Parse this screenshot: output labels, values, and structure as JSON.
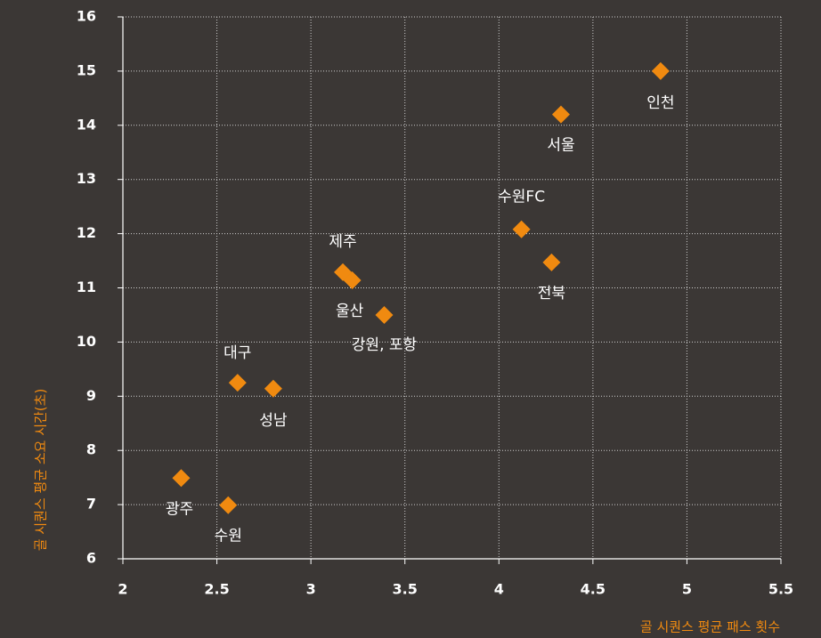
{
  "chart_data": {
    "type": "scatter",
    "x_label": "골 시퀀스 평균 패스 횟수",
    "y_label": "골 시퀀스 평균 소요 시간(초)",
    "labels": [
      "인천",
      "서울",
      "수원FC",
      "전북",
      "제주",
      "울산",
      "강원, 포항",
      "대구",
      "성남",
      "광주",
      "수원"
    ],
    "x": [
      4.86,
      4.33,
      4.12,
      4.28,
      3.17,
      3.22,
      3.39,
      2.61,
      2.8,
      2.31,
      2.56
    ],
    "values": [
      15.0,
      14.2,
      12.08,
      11.47,
      11.29,
      11.14,
      10.5,
      9.25,
      9.14,
      7.49,
      6.99
    ],
    "color": "#f08a10",
    "xlim": [
      2,
      5.5
    ],
    "xticks": [
      2,
      2.5,
      3,
      3.5,
      4,
      4.5,
      5,
      5.5
    ],
    "ylim": [
      6,
      16
    ],
    "yticks": [
      6,
      7,
      8,
      9,
      10,
      11,
      12,
      13,
      14,
      15,
      16
    ],
    "grid": true
  }
}
